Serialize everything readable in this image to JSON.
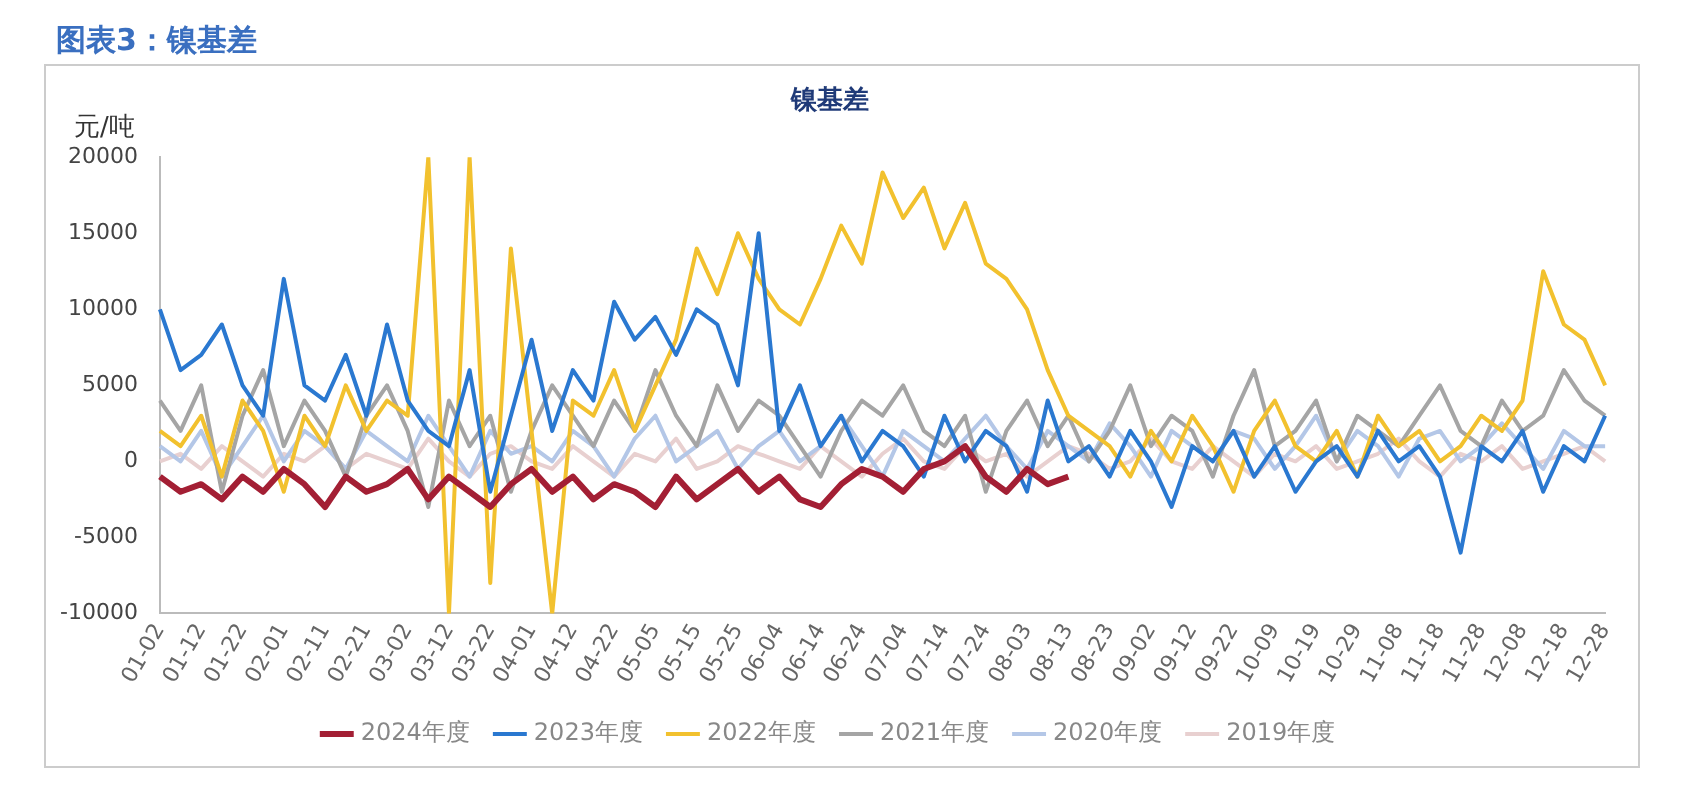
{
  "chart_data": {
    "type": "line",
    "title": "图表3：镍基差",
    "subtitle": "镍基差",
    "ylabel": "元/吨",
    "categories": [
      "01-02",
      null,
      "01-12",
      null,
      "01-22",
      null,
      "02-01",
      null,
      "02-11",
      null,
      "02-21",
      null,
      "03-02",
      null,
      "03-12",
      null,
      "03-22",
      null,
      "04-01",
      null,
      "04-12",
      null,
      "04-22",
      null,
      "05-05",
      null,
      "05-15",
      null,
      "05-25",
      null,
      "06-04",
      null,
      "06-14",
      null,
      "06-24",
      null,
      "07-04",
      null,
      "07-14",
      null,
      "07-24",
      null,
      "08-03",
      null,
      "08-13",
      null,
      "08-23",
      null,
      "09-02",
      null,
      "09-12",
      null,
      "09-22",
      null,
      "10-09",
      null,
      "10-19",
      null,
      "10-29",
      null,
      "11-08",
      null,
      "11-18",
      null,
      "11-28",
      null,
      "12-08",
      null,
      "12-18",
      null,
      "12-28"
    ],
    "series": [
      {
        "name": "2024年度",
        "color": "#a31f34",
        "values": [
          -1000,
          -2000,
          -1500,
          -2500,
          -1000,
          -2000,
          -500,
          -1500,
          -3000,
          -1000,
          -2000,
          -1500,
          -500,
          -2500,
          -1000,
          -2000,
          -3000,
          -1500,
          -500,
          -2000,
          -1000,
          -2500,
          -1500,
          -2000,
          -3000,
          -1000,
          -2500,
          -1500,
          -500,
          -2000,
          -1000,
          -2500,
          -3000,
          -1500,
          -500,
          -1000,
          -2000,
          -500,
          0,
          1000,
          -1000,
          -2000,
          -500,
          -1500,
          -1000,
          null,
          null,
          null,
          null,
          null,
          null,
          null,
          null,
          null,
          null,
          null,
          null,
          null,
          null,
          null,
          null,
          null,
          null,
          null,
          null,
          null,
          null,
          null,
          null,
          null,
          null
        ]
      },
      {
        "name": "2023年度",
        "color": "#2a78d0",
        "values": [
          10000,
          6000,
          7000,
          9000,
          5000,
          3000,
          12000,
          5000,
          4000,
          7000,
          3000,
          9000,
          4000,
          2000,
          1000,
          6000,
          -2000,
          3000,
          8000,
          2000,
          6000,
          4000,
          10500,
          8000,
          9500,
          7000,
          10000,
          9000,
          5000,
          15000,
          2000,
          5000,
          1000,
          3000,
          0,
          2000,
          1000,
          -1000,
          3000,
          0,
          2000,
          1000,
          -2000,
          4000,
          0,
          1000,
          -1000,
          2000,
          0,
          -3000,
          1000,
          0,
          2000,
          -1000,
          1000,
          -2000,
          0,
          1000,
          -1000,
          2000,
          0,
          1000,
          -1000,
          -6000,
          1000,
          0,
          2000,
          -2000,
          1000,
          0,
          3000
        ]
      },
      {
        "name": "2022年度",
        "color": "#f2c12e",
        "values": [
          2000,
          1000,
          3000,
          -1000,
          4000,
          2000,
          -2000,
          3000,
          1000,
          5000,
          2000,
          4000,
          3000,
          20000,
          -10000,
          20000,
          -8000,
          14000,
          2000,
          -10000,
          4000,
          3000,
          6000,
          2000,
          5000,
          8000,
          14000,
          11000,
          15000,
          12000,
          10000,
          9000,
          12000,
          15500,
          13000,
          19000,
          16000,
          18000,
          14000,
          17000,
          13000,
          12000,
          10000,
          6000,
          3000,
          2000,
          1000,
          -1000,
          2000,
          0,
          3000,
          1000,
          -2000,
          2000,
          4000,
          1000,
          0,
          2000,
          -1000,
          3000,
          1000,
          2000,
          0,
          1000,
          3000,
          2000,
          4000,
          12500,
          9000,
          8000,
          5000
        ]
      },
      {
        "name": "2021年度",
        "color": "#a5a5a5",
        "values": [
          4000,
          2000,
          5000,
          -2000,
          3000,
          6000,
          1000,
          4000,
          2000,
          -1000,
          3000,
          5000,
          2000,
          -3000,
          4000,
          1000,
          3000,
          -2000,
          2000,
          5000,
          3000,
          1000,
          4000,
          2000,
          6000,
          3000,
          1000,
          5000,
          2000,
          4000,
          3000,
          1000,
          -1000,
          2000,
          4000,
          3000,
          5000,
          2000,
          1000,
          3000,
          -2000,
          2000,
          4000,
          1000,
          3000,
          0,
          2000,
          5000,
          1000,
          3000,
          2000,
          -1000,
          3000,
          6000,
          1000,
          2000,
          4000,
          0,
          3000,
          2000,
          1000,
          3000,
          5000,
          2000,
          1000,
          4000,
          2000,
          3000,
          6000,
          4000,
          3000
        ]
      },
      {
        "name": "2020年度",
        "color": "#b4c7e7",
        "values": [
          1000,
          0,
          2000,
          -1000,
          1000,
          3000,
          0,
          2000,
          1000,
          -500,
          2000,
          1000,
          0,
          3000,
          1000,
          -1000,
          2000,
          500,
          1000,
          0,
          2000,
          1000,
          -1000,
          1500,
          3000,
          0,
          1000,
          2000,
          -500,
          1000,
          2000,
          0,
          1000,
          3000,
          1000,
          -1000,
          2000,
          1000,
          0,
          1500,
          3000,
          1000,
          -500,
          2000,
          1000,
          0,
          2500,
          1000,
          -1000,
          2000,
          1000,
          0,
          2000,
          1500,
          -500,
          1000,
          3000,
          0,
          2000,
          1000,
          -1000,
          1500,
          2000,
          0,
          1000,
          2500,
          1000,
          -500,
          2000,
          1000,
          1000
        ]
      },
      {
        "name": "2019年度",
        "color": "#e8d0d0",
        "values": [
          0,
          500,
          -500,
          1000,
          0,
          -1000,
          500,
          0,
          1000,
          -500,
          500,
          0,
          -500,
          1500,
          0,
          -1000,
          500,
          1000,
          0,
          -500,
          1000,
          0,
          -1000,
          500,
          0,
          1500,
          -500,
          0,
          1000,
          500,
          0,
          -500,
          1000,
          0,
          -1000,
          500,
          1500,
          0,
          -500,
          1000,
          0,
          500,
          -1000,
          0,
          1000,
          500,
          -500,
          0,
          1500,
          0,
          -500,
          1000,
          0,
          -1000,
          500,
          0,
          1000,
          -500,
          0,
          500,
          1500,
          0,
          -1000,
          500,
          0,
          1000,
          -500,
          0,
          500,
          1000,
          0
        ]
      }
    ],
    "ylim": [
      -10000,
      20000
    ],
    "yticks": [
      -10000,
      -5000,
      0,
      5000,
      10000,
      15000,
      20000
    ],
    "grid": false,
    "legend": "bottom",
    "marker": "none",
    "line_style": "solid"
  }
}
